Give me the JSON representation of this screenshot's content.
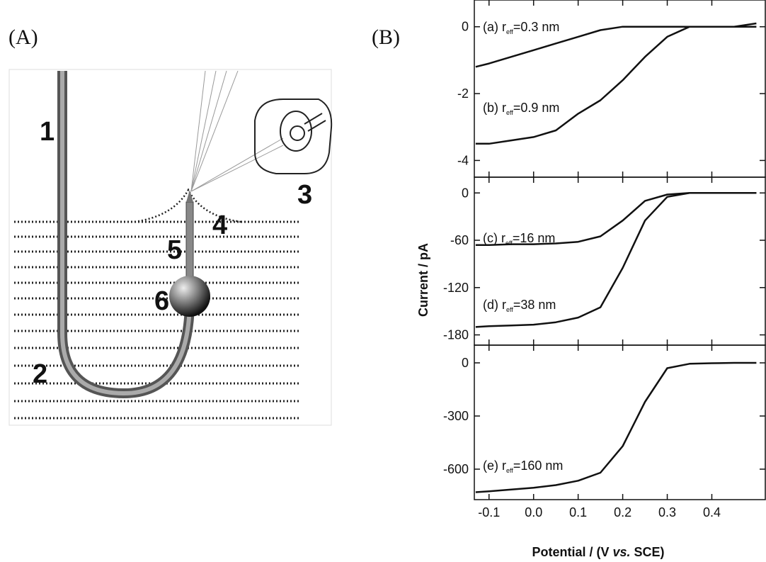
{
  "figure": {
    "panel_a_label": "(A)",
    "panel_b_label": "(B)",
    "diagram_labels": [
      "1",
      "2",
      "3",
      "4",
      "5",
      "6"
    ],
    "y_label": "Current / pA",
    "x_label": [
      "Potential / (V ",
      "vs.",
      " SCE)"
    ]
  },
  "chart_data": [
    {
      "type": "line",
      "x": [
        -0.13,
        -0.1,
        -0.05,
        0,
        0.05,
        0.1,
        0.15,
        0.2,
        0.25,
        0.3,
        0.35,
        0.4,
        0.45,
        0.5
      ],
      "xlim": [
        -0.133,
        0.52
      ],
      "ylim": [
        -4.5,
        0.8
      ],
      "yticks": [
        0,
        -2,
        -4
      ],
      "series": [
        {
          "color": "#111111",
          "values": [
            -1.2,
            -1.1,
            -0.9,
            -0.7,
            -0.5,
            -0.3,
            -0.1,
            0,
            0,
            0,
            0,
            0,
            0,
            0.1
          ]
        },
        {
          "color": "#111111",
          "values": [
            -3.5,
            -3.5,
            -3.4,
            -3.3,
            -3.1,
            -2.6,
            -2.2,
            -1.6,
            -0.9,
            -0.3,
            0,
            0,
            0,
            0
          ]
        }
      ],
      "annotations": [
        {
          "text": "(a) r",
          "sub": "eff",
          "rest": "=0.3 nm"
        },
        {
          "text": "(b) r",
          "sub": "eff",
          "rest": "=0.9 nm"
        }
      ]
    },
    {
      "type": "line",
      "x": [
        -0.13,
        -0.1,
        -0.05,
        0,
        0.05,
        0.1,
        0.15,
        0.2,
        0.25,
        0.3,
        0.35,
        0.4,
        0.45,
        0.5
      ],
      "xlim": [
        -0.133,
        0.52
      ],
      "ylim": [
        -193,
        20
      ],
      "yticks": [
        0,
        -60,
        -120,
        -180
      ],
      "series": [
        {
          "color": "#111111",
          "values": [
            -66,
            -66,
            -65,
            -65,
            -64,
            -62,
            -55,
            -35,
            -10,
            -2,
            0,
            0,
            0,
            0
          ]
        },
        {
          "color": "#111111",
          "values": [
            -170,
            -169,
            -168,
            -167,
            -164,
            -158,
            -145,
            -95,
            -35,
            -5,
            0,
            0,
            0,
            0
          ]
        }
      ],
      "annotations": [
        {
          "text": "(c) r",
          "sub": "eff",
          "rest": "=16 nm"
        },
        {
          "text": "(d) r",
          "sub": "eff",
          "rest": "=38 nm"
        }
      ]
    },
    {
      "type": "line",
      "x": [
        -0.13,
        -0.1,
        -0.05,
        0,
        0.05,
        0.1,
        0.15,
        0.2,
        0.25,
        0.3,
        0.35,
        0.4,
        0.45,
        0.5
      ],
      "xlim": [
        -0.133,
        0.52
      ],
      "ylim": [
        -772,
        100
      ],
      "yticks": [
        0,
        -300,
        -600
      ],
      "xticks": [
        -0.1,
        {
          "value": 0,
          "label": "0.0"
        },
        0.1,
        0.2,
        0.3,
        0.4
      ],
      "series": [
        {
          "color": "#111111",
          "values": [
            -730,
            -725,
            -715,
            -705,
            -690,
            -665,
            -620,
            -470,
            -220,
            -30,
            -5,
            -2,
            0,
            0
          ]
        }
      ],
      "annotations": [
        {
          "text": "(e) r",
          "sub": "eff",
          "rest": "=160 nm"
        }
      ]
    }
  ]
}
